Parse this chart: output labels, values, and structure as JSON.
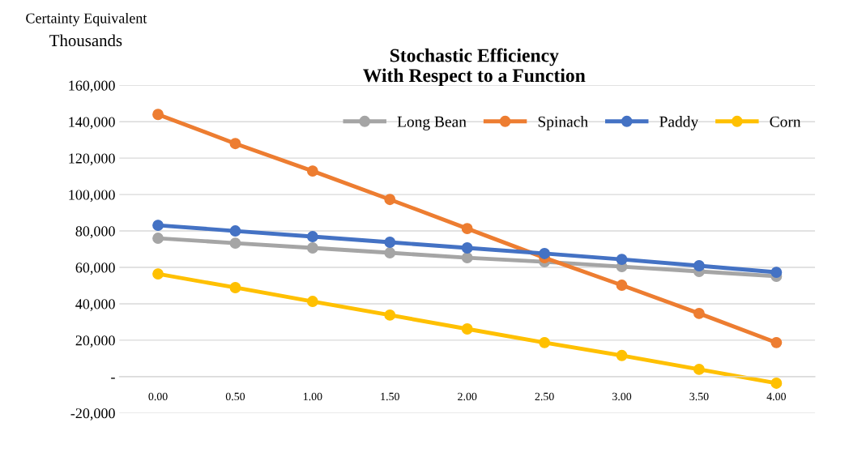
{
  "chart_data": {
    "type": "line",
    "title": "Stochastic Efficiency\nWith Respect to a Function",
    "ylabel": "Certainty Equivalent",
    "annotations": [
      "Thousands"
    ],
    "categories": [
      "0.00",
      "0.50",
      "1.00",
      "1.50",
      "2.00",
      "2.50",
      "3.00",
      "3.50",
      "4.00"
    ],
    "series": [
      {
        "name": "Long Bean",
        "color": "#a5a5a5",
        "values": [
          76000,
          73300,
          70700,
          68000,
          65300,
          63100,
          60400,
          57800,
          55100
        ]
      },
      {
        "name": "Spinach",
        "color": "#ed7d31",
        "values": [
          144000,
          128000,
          112900,
          97300,
          81300,
          65300,
          50200,
          34700,
          18700
        ]
      },
      {
        "name": "Paddy",
        "color": "#4472c4",
        "values": [
          83100,
          80000,
          76900,
          73800,
          70700,
          67600,
          64400,
          60900,
          57300
        ]
      },
      {
        "name": "Corn",
        "color": "#ffc000",
        "values": [
          56400,
          48900,
          41300,
          33800,
          26200,
          18700,
          11600,
          4000,
          -3600
        ]
      }
    ],
    "ylim": [
      -20000,
      160000
    ],
    "yticks": [
      {
        "value": -20000,
        "label": "-20,000"
      },
      {
        "value": 0,
        "label": "-"
      },
      {
        "value": 20000,
        "label": "20,000"
      },
      {
        "value": 40000,
        "label": "40,000"
      },
      {
        "value": 60000,
        "label": "60,000"
      },
      {
        "value": 80000,
        "label": "80,000"
      },
      {
        "value": 100000,
        "label": "100,000"
      },
      {
        "value": 120000,
        "label": "120,000"
      },
      {
        "value": 140000,
        "label": "140,000"
      },
      {
        "value": 160000,
        "label": "160,000"
      }
    ],
    "grid": "y",
    "legend": "top right",
    "marker": "circle",
    "line_style": "solid"
  }
}
